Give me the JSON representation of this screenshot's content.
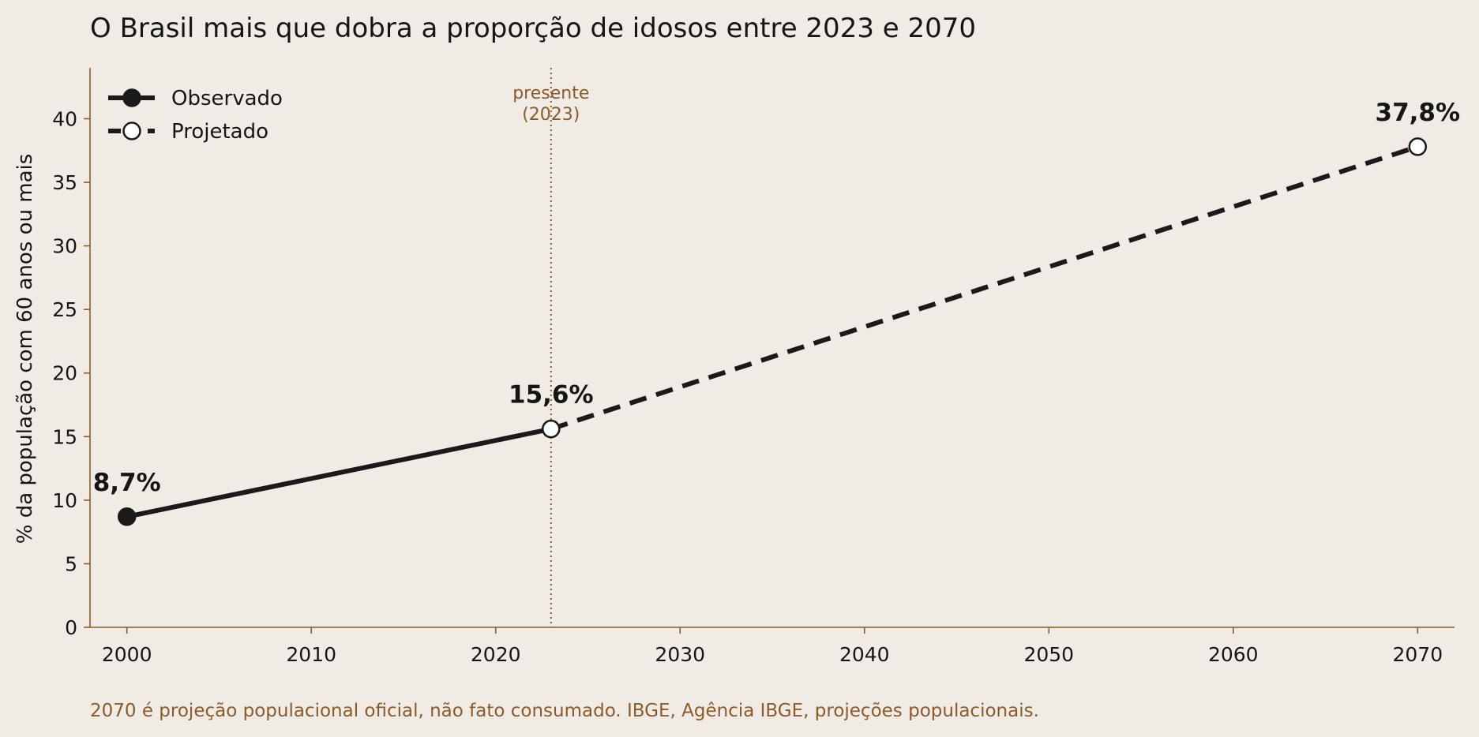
{
  "chart_data": {
    "type": "line",
    "title": "O Brasil mais que dobra a proporção de idosos entre 2023 e 2070",
    "ylabel": "% da população com 60 anos ou mais",
    "xlabel": "",
    "xlim": [
      1998,
      2072
    ],
    "ylim": [
      0,
      44
    ],
    "x_ticks": [
      2000,
      2010,
      2020,
      2030,
      2040,
      2050,
      2060,
      2070
    ],
    "y_ticks": [
      0,
      5,
      10,
      15,
      20,
      25,
      30,
      35,
      40
    ],
    "grid": false,
    "legend_position": "top-left",
    "series": [
      {
        "name": "Observado",
        "style": "solid",
        "marker": "filled-circle",
        "color": "#1A1A1A",
        "x": [
          2000,
          2023
        ],
        "y": [
          8.7,
          15.6
        ]
      },
      {
        "name": "Projetado",
        "style": "dashed",
        "marker": "open-circle",
        "color": "#1A1A1A",
        "x": [
          2023,
          2070
        ],
        "y": [
          15.6,
          37.8
        ]
      }
    ],
    "data_labels": [
      {
        "x": 2000,
        "y": 8.7,
        "text": "8,7%"
      },
      {
        "x": 2023,
        "y": 15.6,
        "text": "15,6%"
      },
      {
        "x": 2070,
        "y": 37.8,
        "text": "37,8%"
      }
    ],
    "reference_line": {
      "x": 2023,
      "label_line1": "presente",
      "label_line2": "(2023)",
      "color": "#8B5A2B"
    },
    "axis_color": "#8B5A2B",
    "background": "#F0ECE5"
  },
  "footnote": "2070 é projeção populacional oficial, não fato consumado. IBGE, Agência IBGE, projeções populacionais."
}
